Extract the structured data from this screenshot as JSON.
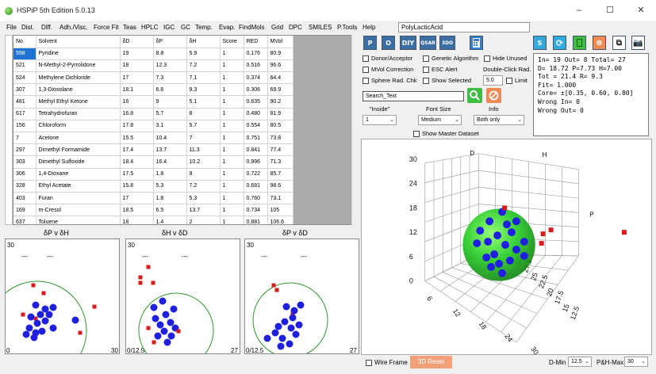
{
  "window": {
    "title": "HSPiP 5th Edition 5.0.13",
    "minimize": "–",
    "maximize": "☐",
    "close": "✕"
  },
  "menu": [
    "File",
    "Dist.",
    "Diff.",
    "Adh./Visc.",
    "Force Fit",
    "Teas",
    "HPLC",
    "IGC",
    "GC",
    "Temp.",
    "Evap.",
    "FindMols",
    "Grid",
    "DPC",
    "SMILES",
    "P.Tools",
    "Help"
  ],
  "file_name": "PolyLacticAcid",
  "table": {
    "headers": [
      "No.",
      "Solvent",
      "δD",
      "δP",
      "δH",
      "Score",
      "RED",
      "MVol"
    ],
    "rows": [
      [
        "598",
        "Pyridine",
        "19",
        "8.8",
        "5.9",
        "1",
        "0.176",
        "80.9"
      ],
      [
        "521",
        "N-Methyl-2-Pyrrolidone",
        "18",
        "12.3",
        "7.2",
        "1",
        "0.516",
        "96.6"
      ],
      [
        "524",
        "Methylene Dichloride",
        "17",
        "7.3",
        "7.1",
        "1",
        "0.374",
        "64.4"
      ],
      [
        "307",
        "1,3-Dioxolane",
        "18.1",
        "6.6",
        "9.3",
        "1",
        "0.306",
        "69.9"
      ],
      [
        "481",
        "Methyl Ethyl Ketone",
        "16",
        "9",
        "5.1",
        "1",
        "0.635",
        "90.2"
      ],
      [
        "617",
        "Tetrahydrofuran",
        "16.8",
        "5.7",
        "8",
        "1",
        "0.480",
        "81.9"
      ],
      [
        "156",
        "Chloroform",
        "17.8",
        "3.1",
        "5.7",
        "1",
        "0.554",
        "80.5"
      ],
      [
        "7",
        "Acetone",
        "15.5",
        "10.4",
        "7",
        "1",
        "0.751",
        "73.8"
      ],
      [
        "297",
        "Dimethyl Formamide",
        "17.4",
        "13.7",
        "11.3",
        "1",
        "0.841",
        "77.4"
      ],
      [
        "303",
        "Dimethyl Sulfoxide",
        "18.4",
        "16.4",
        "10.2",
        "1",
        "0.996",
        "71.3"
      ],
      [
        "306",
        "1,4-Dioxane",
        "17.5",
        "1.8",
        "9",
        "1",
        "0.722",
        "85.7"
      ],
      [
        "328",
        "Ethyl Acetate",
        "15.8",
        "5.3",
        "7.2",
        "1",
        "0.681",
        "98.6"
      ],
      [
        "403",
        "Furan",
        "17",
        "1.8",
        "5.3",
        "1",
        "0.760",
        "73.1"
      ],
      [
        "169",
        "m-Cresol",
        "18.5",
        "6.5",
        "13.7",
        "1",
        "0.734",
        "105"
      ],
      [
        "637",
        "Toluene",
        "18",
        "1.4",
        "2",
        "1",
        "0.881",
        "106.6"
      ]
    ]
  },
  "small_plots": [
    {
      "title": "δP v δH",
      "tl": "30",
      "br": "30",
      "bl": "0"
    },
    {
      "title": "δH v δD",
      "tl": "30",
      "br": "27",
      "bl": "0/12.5"
    },
    {
      "title": "δP v δD",
      "tl": "30",
      "br": "27",
      "bl": "0/12.5"
    }
  ],
  "toolbar_left": [
    "P",
    "O",
    "DIY",
    "QSAR",
    "3DO"
  ],
  "toolbar_right_labels": {
    "s": "S"
  },
  "options": {
    "donor_acceptor": "Donor/Acceptor",
    "genetic_algorithm": "Genetic Algorithm",
    "hide_unused": "Hide Unused",
    "mvol_correction": "MVol Correction",
    "esc_alert": "ESC Alert",
    "double_click_rad": "Double-Click Rad.",
    "sphere_rad_chk": "Sphere Rad. Chk",
    "show_selected": "Show Selected",
    "radius_value": "5.0",
    "limit": "Limit",
    "search_text": "Search_Text",
    "inside_label": "\"Inside\"",
    "font_size_label": "Font Size",
    "info_label": "Info",
    "inside_value": "1",
    "font_size_value": "Medium",
    "info_value": "Both only",
    "show_master_dataset": "Show Master Dataset"
  },
  "stats": "In= 19 Out= 8 Total= 27\nD= 18.72 P=7.73 H=7.00\nTot = 21.4 R= 9.3\nFit= 1.000\nCore= ±[0.35, 0.60, 0.80]\nWrong In= 0\nWrong Out= 0",
  "plot3d": {
    "axis_labels": {
      "d": "D",
      "h": "H",
      "p": "P"
    },
    "left_ticks": [
      "30",
      "24",
      "18",
      "12",
      "6",
      "0"
    ],
    "front_ticks": [
      "6",
      "12",
      "18",
      "24",
      "30"
    ],
    "depth_ticks": [
      "12.5",
      "15",
      "17.5",
      "20",
      "22.5",
      "25",
      "27.5",
      "30"
    ]
  },
  "bottom": {
    "wire_frame": "Wire Frame",
    "reset_3d": "3D Reset",
    "dmin_label": "D-Min",
    "dmin_value": "12.5",
    "phmax_label": "P&H-Max",
    "phmax_value": "30"
  },
  "colors": {
    "good": "#1f1fe0",
    "bad": "#d81b1b",
    "sphere": "#22cc22",
    "selection": "#1e73d2"
  }
}
